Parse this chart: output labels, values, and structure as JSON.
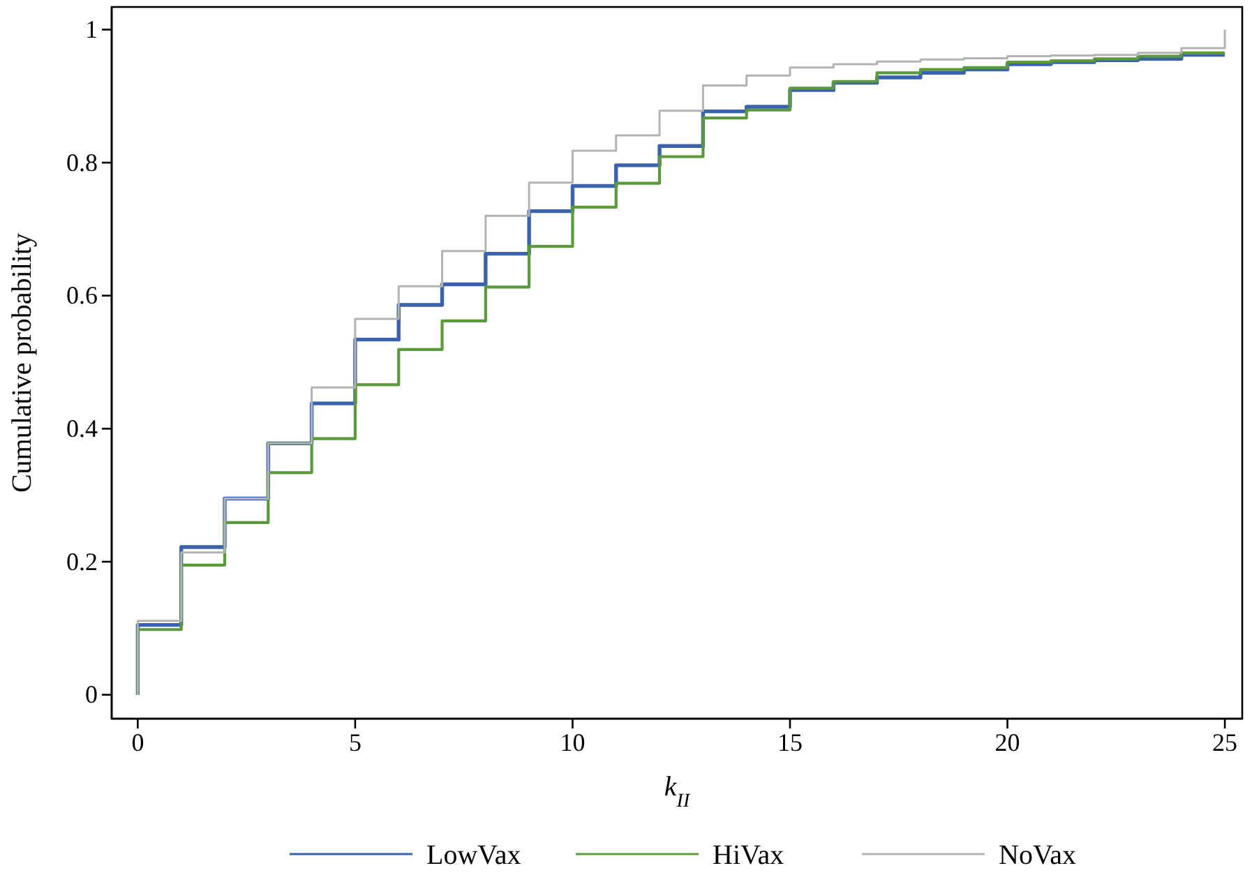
{
  "chart_data": {
    "type": "step",
    "xlabel": "k$_{II}$",
    "ylabel": "Cumulative probability",
    "xlim": [
      -0.6,
      25.4
    ],
    "ylim": [
      -0.036,
      1.034
    ],
    "xticks": [
      0,
      5,
      10,
      15,
      20,
      25
    ],
    "yticks": [
      0,
      {
        "value": 0.2,
        "label": "0.2"
      },
      {
        "value": 0.4,
        "label": "0.4"
      },
      {
        "value": 0.6,
        "label": "0.6"
      },
      {
        "value": 0.8,
        "label": "0.8"
      },
      1
    ],
    "legend": "bottom",
    "grid": false,
    "x": [
      0,
      0,
      1,
      2,
      3,
      4,
      5,
      6,
      7,
      8,
      9,
      10,
      11,
      12,
      13,
      14,
      15,
      16,
      17,
      18,
      19,
      20,
      21,
      22,
      23,
      24,
      25
    ],
    "series": [
      {
        "name": "LowVax",
        "color": "#3a62ad",
        "values": [
          0,
          0.105,
          0.222,
          0.295,
          0.378,
          0.438,
          0.534,
          0.586,
          0.617,
          0.663,
          0.727,
          0.765,
          0.796,
          0.825,
          0.877,
          0.884,
          0.909,
          0.92,
          0.928,
          0.935,
          0.94,
          0.948,
          0.951,
          0.954,
          0.956,
          0.962,
          0.962
        ]
      },
      {
        "name": "HiVax",
        "color": "#5a9a3c",
        "values": [
          0,
          0.098,
          0.195,
          0.259,
          0.334,
          0.385,
          0.466,
          0.519,
          0.562,
          0.613,
          0.674,
          0.733,
          0.769,
          0.809,
          0.867,
          0.879,
          0.912,
          0.922,
          0.935,
          0.94,
          0.943,
          0.951,
          0.953,
          0.956,
          0.96,
          0.965,
          0.965
        ]
      },
      {
        "name": "NoVax",
        "color": "#b3b3b3",
        "x": [
          0,
          0,
          1,
          2,
          3,
          4,
          5,
          6,
          7,
          8,
          9,
          10,
          11,
          12,
          13,
          14,
          15,
          16,
          17,
          18,
          19,
          20,
          21,
          22,
          23,
          24,
          25,
          25
        ],
        "values": [
          0,
          0.111,
          0.214,
          0.295,
          0.378,
          0.462,
          0.565,
          0.614,
          0.667,
          0.72,
          0.77,
          0.818,
          0.841,
          0.878,
          0.916,
          0.931,
          0.943,
          0.948,
          0.952,
          0.955,
          0.957,
          0.96,
          0.961,
          0.962,
          0.965,
          0.972,
          0.972,
          1.0
        ]
      }
    ]
  }
}
